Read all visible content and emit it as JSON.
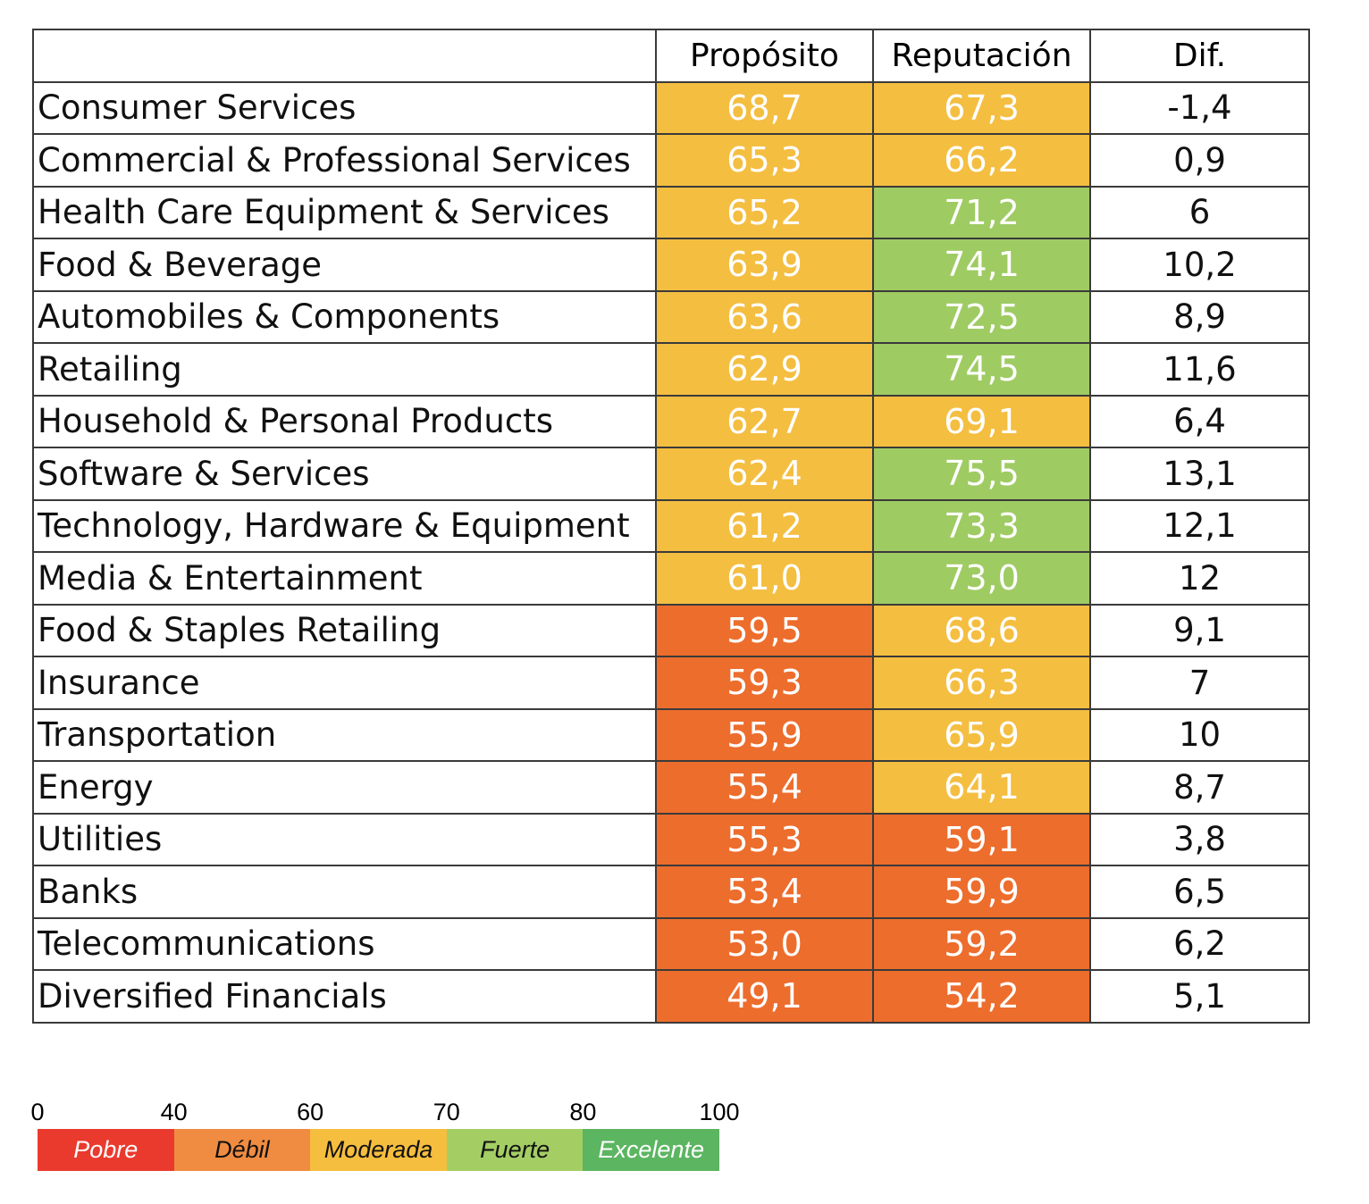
{
  "chart_data": {
    "type": "table",
    "columns": [
      "",
      "Propósito",
      "Reputación",
      "Dif."
    ],
    "rows": [
      {
        "name": "Consumer Services",
        "proposito": "68,7",
        "reputacion": "67,3",
        "dif": "-1,4"
      },
      {
        "name": "Commercial & Professional Services",
        "proposito": "65,3",
        "reputacion": "66,2",
        "dif": "0,9"
      },
      {
        "name": "Health Care Equipment & Services",
        "proposito": "65,2",
        "reputacion": "71,2",
        "dif": "6"
      },
      {
        "name": "Food & Beverage",
        "proposito": "63,9",
        "reputacion": "74,1",
        "dif": "10,2"
      },
      {
        "name": "Automobiles & Components",
        "proposito": "63,6",
        "reputacion": "72,5",
        "dif": "8,9"
      },
      {
        "name": "Retailing",
        "proposito": "62,9",
        "reputacion": "74,5",
        "dif": "11,6"
      },
      {
        "name": "Household & Personal Products",
        "proposito": "62,7",
        "reputacion": "69,1",
        "dif": "6,4"
      },
      {
        "name": "Software & Services",
        "proposito": "62,4",
        "reputacion": "75,5",
        "dif": "13,1"
      },
      {
        "name": "Technology, Hardware & Equipment",
        "proposito": "61,2",
        "reputacion": "73,3",
        "dif": "12,1"
      },
      {
        "name": "Media & Entertainment",
        "proposito": "61,0",
        "reputacion": "73,0",
        "dif": "12"
      },
      {
        "name": "Food & Staples Retailing",
        "proposito": "59,5",
        "reputacion": "68,6",
        "dif": "9,1"
      },
      {
        "name": "Insurance",
        "proposito": "59,3",
        "reputacion": "66,3",
        "dif": "7"
      },
      {
        "name": "Transportation",
        "proposito": "55,9",
        "reputacion": "65,9",
        "dif": "10"
      },
      {
        "name": "Energy",
        "proposito": "55,4",
        "reputacion": "64,1",
        "dif": "8,7"
      },
      {
        "name": "Utilities",
        "proposito": "55,3",
        "reputacion": "59,1",
        "dif": "3,8"
      },
      {
        "name": "Banks",
        "proposito": "53,4",
        "reputacion": "59,9",
        "dif": "6,5"
      },
      {
        "name": "Telecommunications",
        "proposito": "53,0",
        "reputacion": "59,2",
        "dif": "6,2"
      },
      {
        "name": "Diversified Financials",
        "proposito": "49,1",
        "reputacion": "54,2",
        "dif": "5,1"
      }
    ],
    "cell_colors": {
      "below_60": "#ED6D2D",
      "60_to_70": "#F4BE41",
      "70_to_80": "#9FCB63"
    },
    "legend": {
      "ticks": [
        "0",
        "40",
        "60",
        "70",
        "80",
        "100"
      ],
      "bands": [
        {
          "label": "Pobre",
          "from": 0,
          "to": 40,
          "color": "#EA3A2E",
          "text_color": "#ffffff"
        },
        {
          "label": "Débil",
          "from": 40,
          "to": 60,
          "color": "#F08C41",
          "text_color": "#111111"
        },
        {
          "label": "Moderada",
          "from": 60,
          "to": 70,
          "color": "#F6BE3E",
          "text_color": "#111111"
        },
        {
          "label": "Fuerte",
          "from": 70,
          "to": 80,
          "color": "#A4CE64",
          "text_color": "#111111"
        },
        {
          "label": "Excelente",
          "from": 80,
          "to": 100,
          "color": "#5CB561",
          "text_color": "#ffffff"
        }
      ]
    }
  }
}
